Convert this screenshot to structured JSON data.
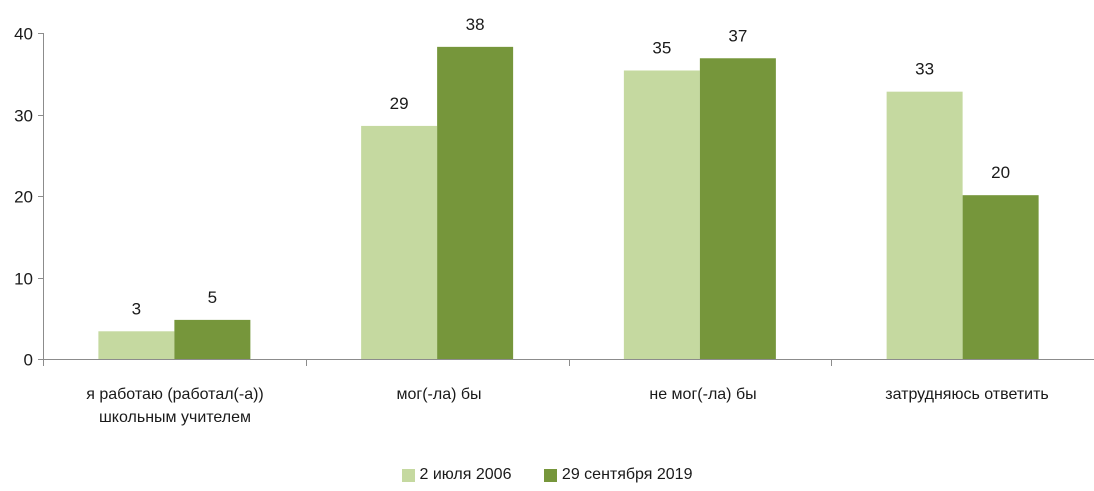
{
  "chart_data": {
    "type": "bar",
    "categories": [
      "я работаю (работал(-а)) школьным учителем",
      "мог(-ла) бы",
      "не мог(-ла) бы",
      "затрудняюсь ответить"
    ],
    "series": [
      {
        "name": "2 июля 2006",
        "values": [
          3,
          29,
          35,
          33
        ],
        "bar_values": [
          3.4,
          28.6,
          35.4,
          32.8
        ],
        "color": "#c5d9a0"
      },
      {
        "name": "29 сентября 2019",
        "values": [
          5,
          38,
          37,
          20
        ],
        "bar_values": [
          4.8,
          38.3,
          36.9,
          20.1
        ],
        "color": "#76963b"
      }
    ],
    "ylim": [
      0,
      40
    ],
    "yticks": [
      "0",
      "10",
      "20",
      "30",
      "40"
    ],
    "grid": false,
    "legend_position": "bottom",
    "title": "",
    "xlabel": "",
    "ylabel": ""
  }
}
